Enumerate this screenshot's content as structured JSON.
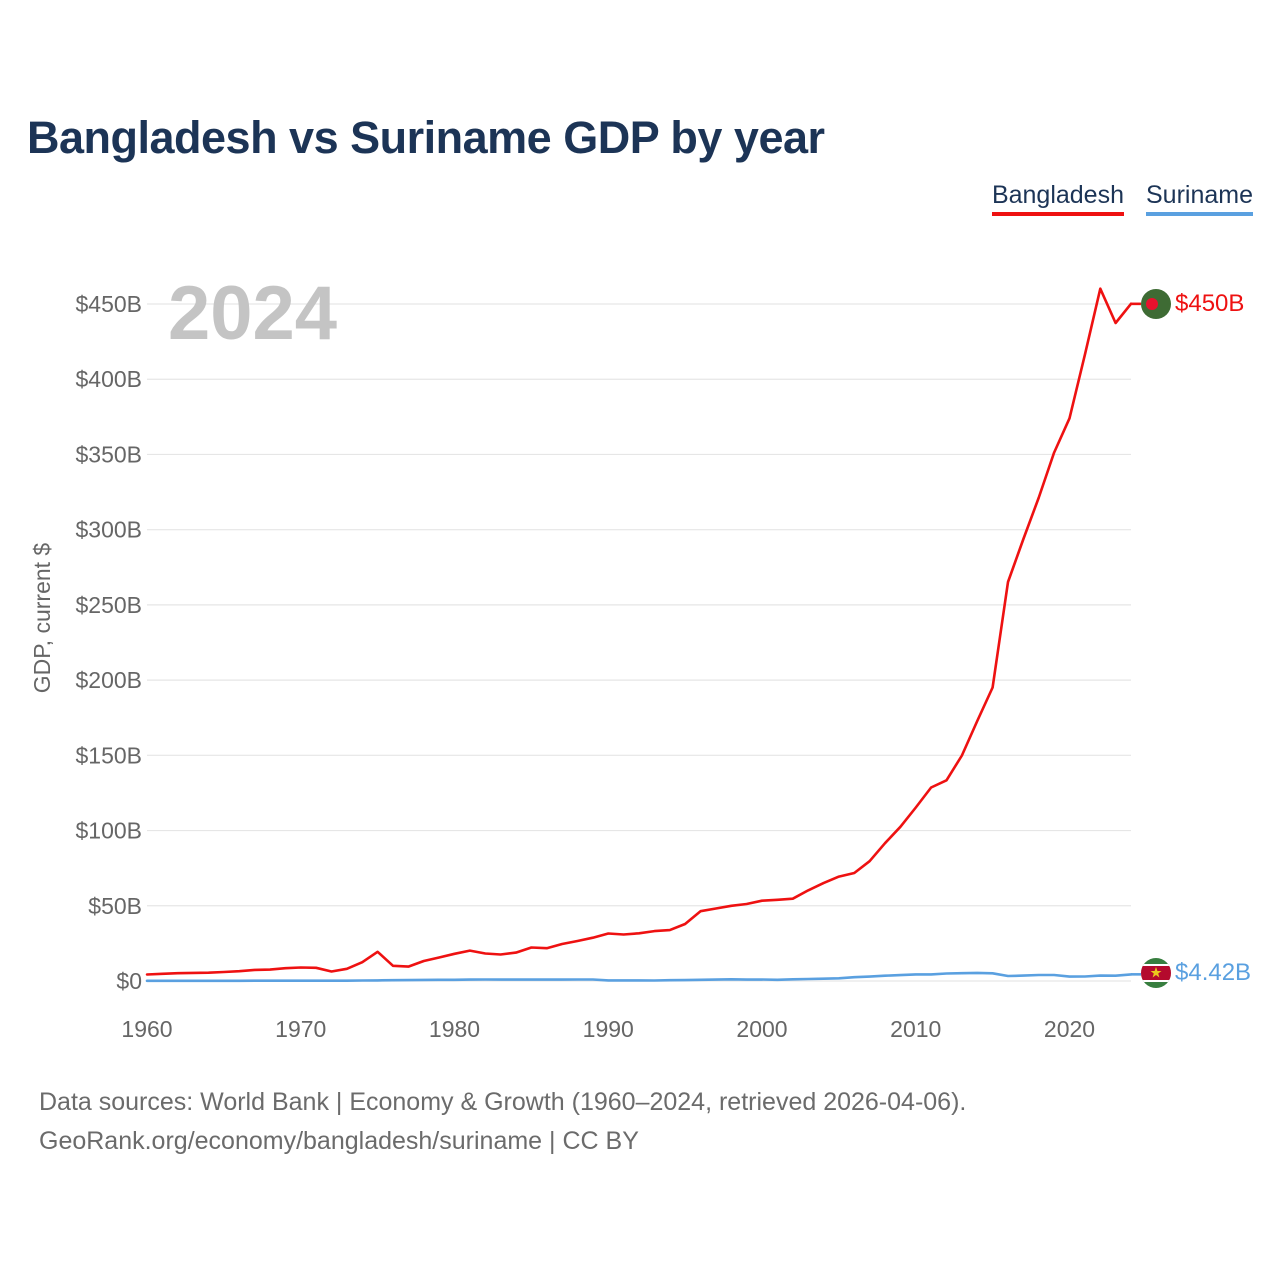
{
  "title": "Bangladesh vs Suriname GDP by year",
  "legend": {
    "bangladesh": "Bangladesh",
    "suriname": "Suriname"
  },
  "year_label": "2024",
  "footer": {
    "line1": "Data sources: World Bank | Economy & Growth (1960–2024, retrieved 2026-04-06).",
    "line2": "GeoRank.org/economy/bangladesh/suriname | CC BY"
  },
  "colors": {
    "bangladesh": "#ee1111",
    "suriname": "#5aa0e0",
    "title": "#1c3456"
  },
  "chart_data": {
    "type": "line",
    "title": "Bangladesh vs Suriname GDP by year",
    "xlabel": "",
    "ylabel": "GDP, current $",
    "xlim": [
      1960,
      2024
    ],
    "ylim": [
      0,
      450
    ],
    "x_ticks": [
      1960,
      1970,
      1980,
      1990,
      2000,
      2010,
      2020
    ],
    "x_tick_labels": [
      "1960",
      "1970",
      "1980",
      "1990",
      "2000",
      "2010",
      "2020"
    ],
    "y_ticks": [
      0,
      50,
      100,
      150,
      200,
      250,
      300,
      350,
      400,
      450
    ],
    "y_tick_labels": [
      "$0",
      "$50B",
      "$100B",
      "$150B",
      "$200B",
      "$250B",
      "$300B",
      "$350B",
      "$400B",
      "$450B"
    ],
    "grid": true,
    "legend_position": "top-right",
    "x": [
      1960,
      1961,
      1962,
      1963,
      1964,
      1965,
      1966,
      1967,
      1968,
      1969,
      1970,
      1971,
      1972,
      1973,
      1974,
      1975,
      1976,
      1977,
      1978,
      1979,
      1980,
      1981,
      1982,
      1983,
      1984,
      1985,
      1986,
      1987,
      1988,
      1989,
      1990,
      1991,
      1992,
      1993,
      1994,
      1995,
      1996,
      1997,
      1998,
      1999,
      2000,
      2001,
      2002,
      2003,
      2004,
      2005,
      2006,
      2007,
      2008,
      2009,
      2010,
      2011,
      2012,
      2013,
      2014,
      2015,
      2016,
      2017,
      2018,
      2019,
      2020,
      2021,
      2022,
      2023,
      2024
    ],
    "series": [
      {
        "name": "Bangladesh",
        "color": "#ee1111",
        "end_label": "$450B",
        "values": [
          4.3,
          4.8,
          5.2,
          5.4,
          5.5,
          6.0,
          6.5,
          7.4,
          7.6,
          8.5,
          9.0,
          8.8,
          6.3,
          8.1,
          12.5,
          19.4,
          10.1,
          9.6,
          13.3,
          15.6,
          18.1,
          20.2,
          18.3,
          17.6,
          18.9,
          22.3,
          21.8,
          24.6,
          26.6,
          28.8,
          31.6,
          30.9,
          31.7,
          33.2,
          33.8,
          37.9,
          46.4,
          48.2,
          50.0,
          51.2,
          53.4,
          54.0,
          54.7,
          60.2,
          65.1,
          69.4,
          71.8,
          79.6,
          91.6,
          102.5,
          115.3,
          128.6,
          133.4,
          149.9,
          172.9,
          195.1,
          265.2,
          293.8,
          321.4,
          351.2,
          374.0,
          416.3,
          460.2,
          437.4,
          450.1
        ]
      },
      {
        "name": "Suriname",
        "color": "#5aa0e0",
        "end_label": "$4.42B",
        "values": [
          0.1,
          0.1,
          0.1,
          0.1,
          0.1,
          0.1,
          0.1,
          0.2,
          0.2,
          0.2,
          0.2,
          0.2,
          0.2,
          0.2,
          0.3,
          0.4,
          0.5,
          0.6,
          0.7,
          0.8,
          0.8,
          0.9,
          1.0,
          0.9,
          0.9,
          0.9,
          0.9,
          0.9,
          1.0,
          1.0,
          0.4,
          0.4,
          0.4,
          0.3,
          0.5,
          0.6,
          0.8,
          0.9,
          1.1,
          0.9,
          1.0,
          0.8,
          1.1,
          1.3,
          1.5,
          1.8,
          2.5,
          2.9,
          3.5,
          3.9,
          4.4,
          4.4,
          5.0,
          5.2,
          5.4,
          5.1,
          3.3,
          3.6,
          4.0,
          4.0,
          2.9,
          3.0,
          3.6,
          3.5,
          4.42
        ]
      }
    ]
  }
}
